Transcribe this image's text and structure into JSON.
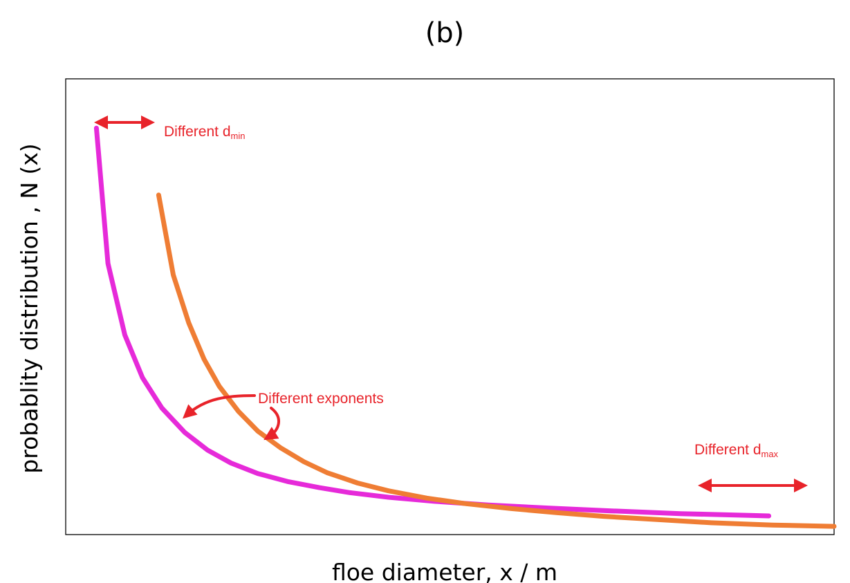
{
  "chart_data": {
    "type": "line",
    "title": "(b)",
    "xlabel": "floe diameter, x / m",
    "ylabel": "probablity distribution , N (x)",
    "grid": false,
    "legend": "none",
    "axis_ticks": false,
    "xlim": [
      0,
      100
    ],
    "ylim": [
      0,
      100
    ],
    "series": [
      {
        "color": "#e62ad9",
        "x": [
          4.0,
          5.5,
          7.7,
          10.0,
          12.5,
          15.5,
          18.5,
          21.5,
          25,
          29,
          33,
          37,
          42,
          48,
          55,
          63,
          71,
          80,
          89,
          91.5
        ],
        "y": [
          89.2,
          59.5,
          43.8,
          34.4,
          27.8,
          22.4,
          18.5,
          15.7,
          13.4,
          11.6,
          10.3,
          9.2,
          8.2,
          7.3,
          6.5,
          5.8,
          5.2,
          4.6,
          4.2,
          4.1
        ]
      },
      {
        "color": "#ef7d34",
        "x": [
          12.1,
          14.0,
          16.0,
          18.0,
          20.0,
          22.5,
          25,
          28,
          31,
          34,
          38,
          42,
          47,
          52,
          58,
          64,
          70,
          77,
          84,
          92,
          100
        ],
        "y": [
          74.5,
          57.0,
          46.5,
          38.5,
          32.5,
          27.0,
          22.7,
          19.0,
          16.0,
          13.6,
          11.3,
          9.6,
          8.0,
          6.8,
          5.7,
          4.8,
          4.0,
          3.3,
          2.6,
          2.1,
          1.8
        ]
      }
    ],
    "annotations": [
      {
        "text": "Different d",
        "subscript": "min"
      },
      {
        "text": "Different exponents"
      },
      {
        "text": "Different d",
        "subscript": "max"
      }
    ]
  },
  "style": {
    "annotation_color": "#e8232a",
    "frame_color": "#000000"
  },
  "icons": {
    "double_arrow": "double-headed-arrow-icon",
    "curved_arrow": "curved-arrow-icon"
  }
}
